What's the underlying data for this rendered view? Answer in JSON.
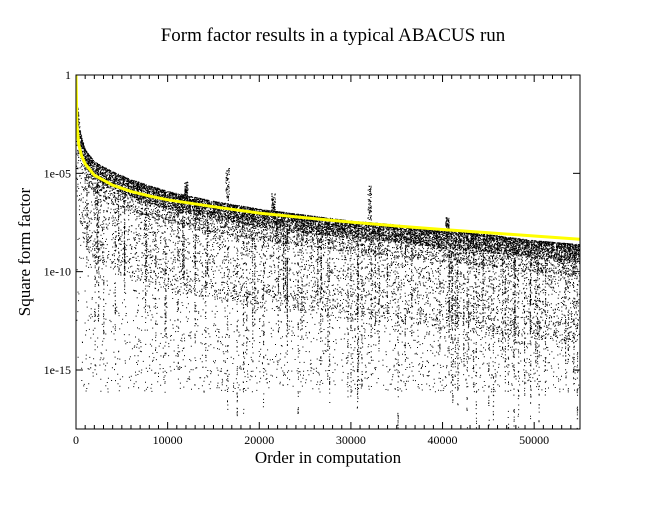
{
  "chart_data": {
    "type": "scatter",
    "title": "Form factor results in a typical ABACUS run",
    "xlabel": "Order in computation",
    "ylabel": "Square form factor",
    "x_range": [
      0,
      55000
    ],
    "y_range": [
      1e-18,
      1
    ],
    "y_scale": "log",
    "x_ticks": [
      0,
      10000,
      20000,
      30000,
      40000,
      50000
    ],
    "x_tick_labels": [
      "0",
      "10000",
      "20000",
      "30000",
      "40000",
      "50000"
    ],
    "y_ticks": [
      1e-15,
      1e-10,
      1e-05,
      1
    ],
    "y_tick_labels": [
      "1e-15",
      "1e-10",
      "1e-05",
      "1"
    ],
    "grid": false,
    "legend": "none",
    "series": [
      {
        "type": "scatter",
        "color": "#000000",
        "point_count": 55000,
        "upper_envelope_log10": [
          [
            0,
            -1
          ],
          [
            500,
            -3
          ],
          [
            1000,
            -3.8
          ],
          [
            2000,
            -4.4
          ],
          [
            4000,
            -4.9
          ],
          [
            6000,
            -5.3
          ],
          [
            10000,
            -5.9
          ],
          [
            15000,
            -6.4
          ],
          [
            16500,
            -4.7
          ],
          [
            20000,
            -6.8
          ],
          [
            25000,
            -7.1
          ],
          [
            30000,
            -7.4
          ],
          [
            32000,
            -5.6
          ],
          [
            35000,
            -7.6
          ],
          [
            40000,
            -7.9
          ],
          [
            45000,
            -8.1
          ],
          [
            50000,
            -8.4
          ],
          [
            55000,
            -8.6
          ]
        ],
        "lower_bound_log10": -16.1
      },
      {
        "type": "line",
        "color": "#ffff00",
        "points": [
          [
            0,
            1
          ],
          [
            100,
            0.003
          ],
          [
            300,
            0.0003
          ],
          [
            600,
            8e-05
          ],
          [
            1000,
            3e-05
          ],
          [
            2000,
            8e-06
          ],
          [
            4000,
            2.5e-06
          ],
          [
            6000,
            1.2e-06
          ],
          [
            8000,
            7e-07
          ],
          [
            10000,
            4.5e-07
          ],
          [
            15000,
            2e-07
          ],
          [
            20000,
            9.5e-08
          ],
          [
            25000,
            5.5e-08
          ],
          [
            30000,
            3.3e-08
          ],
          [
            35000,
            2.1e-08
          ],
          [
            40000,
            1.4e-08
          ],
          [
            45000,
            9.5e-09
          ],
          [
            50000,
            6.5e-09
          ],
          [
            55000,
            4.5e-09
          ]
        ]
      }
    ]
  }
}
